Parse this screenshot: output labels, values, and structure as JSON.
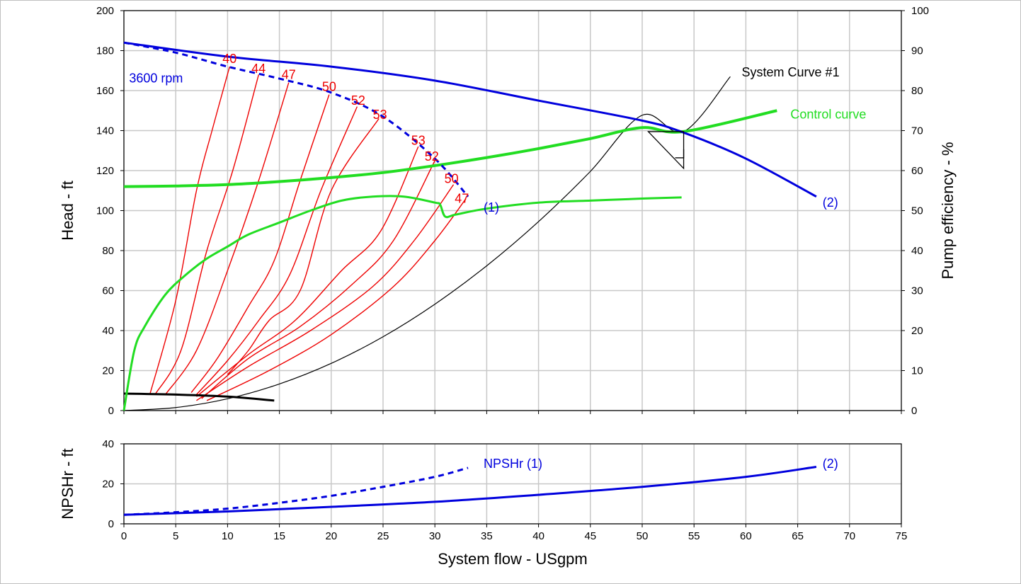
{
  "chart_data": {
    "type": "line",
    "x_axis": {
      "label": "System flow - USgpm",
      "range": [
        0,
        75
      ],
      "ticks": [
        0,
        5,
        10,
        15,
        20,
        25,
        30,
        35,
        40,
        45,
        50,
        55,
        60,
        65,
        70,
        75
      ]
    },
    "head_axis": {
      "label": "Head - ft",
      "range": [
        0,
        200
      ],
      "ticks": [
        0,
        20,
        40,
        60,
        80,
        100,
        120,
        140,
        160,
        180,
        200
      ]
    },
    "efficiency_axis": {
      "label": "Pump efficiency - %",
      "range": [
        0,
        100
      ],
      "ticks": [
        0,
        10,
        20,
        30,
        40,
        50,
        60,
        70,
        80,
        90,
        100
      ]
    },
    "npsh_axis": {
      "label": "NPSHr - ft",
      "range": [
        0,
        40
      ],
      "ticks": [
        0,
        20,
        40
      ]
    },
    "grid": true,
    "colors": {
      "pump": "#0000dd",
      "iso": "#ee0000",
      "control": "#22dd22",
      "system": "#000000"
    },
    "pump_curve_2": {
      "label": "(2)",
      "x": [
        0,
        10,
        20,
        30,
        40,
        50,
        54,
        60,
        66.8
      ],
      "y": [
        184,
        177,
        172,
        165,
        155,
        145,
        139,
        126,
        107
      ]
    },
    "pump_curve_1_3600": {
      "label": "(1)",
      "speed_label": "3600 rpm",
      "x": [
        0,
        5,
        10,
        15,
        20,
        25,
        30,
        33.2
      ],
      "y": [
        184,
        179,
        172,
        166,
        159,
        147,
        126,
        107
      ]
    },
    "system_curve": {
      "label": "System Curve #1",
      "x": [
        0,
        5,
        10,
        15,
        20,
        25,
        30,
        35,
        40,
        45,
        50,
        54,
        58.5
      ],
      "y": [
        0,
        1.5,
        5.9,
        13.3,
        23.6,
        36.9,
        53.2,
        72.4,
        94.5,
        119.6,
        147.7,
        139.5,
        167
      ]
    },
    "control_curve": {
      "label": "Control curve",
      "x": [
        0,
        5,
        10,
        15,
        20,
        25,
        30,
        35,
        40,
        45,
        50,
        54,
        63
      ],
      "y": [
        112,
        112.3,
        113,
        114.5,
        116.5,
        119,
        122.5,
        126.5,
        131,
        136,
        141.5,
        139.5,
        150
      ]
    },
    "efficiency_curve": {
      "x": [
        0,
        1,
        2,
        4,
        6,
        8,
        10,
        12,
        15,
        18,
        21,
        24,
        27,
        30,
        30.5,
        31,
        32,
        35,
        40,
        45,
        50,
        53.8
      ],
      "y": [
        0,
        15,
        21,
        29,
        34,
        38,
        41,
        44,
        47,
        50,
        52.5,
        53.5,
        53.5,
        52,
        51.5,
        48.5,
        49,
        50.5,
        52,
        52.5,
        53,
        53.3
      ]
    },
    "npsh_curve_1": {
      "label": "NPSHr (1)",
      "x": [
        0,
        5,
        10,
        15,
        20,
        25,
        30,
        33.2
      ],
      "y": [
        4.5,
        5.8,
        7.6,
        10.5,
        14,
        18.5,
        23.5,
        28
      ]
    },
    "npsh_curve_2": {
      "label": "(2)",
      "x": [
        0,
        10,
        20,
        30,
        40,
        50,
        60,
        66.8
      ],
      "y": [
        4.5,
        6.2,
        8.5,
        11,
        14.5,
        18.5,
        23.5,
        28.5
      ]
    },
    "low_speed_black": {
      "x": [
        0,
        5,
        10,
        14.5
      ],
      "y": [
        8.5,
        8,
        7,
        5
      ]
    },
    "iso_efficiency_labels": [
      "40",
      "44",
      "47",
      "50",
      "52",
      "53",
      "53",
      "52",
      "50",
      "47"
    ],
    "iso_efficiency_lines": [
      {
        "label": "40",
        "x": [
          2.5,
          5,
          7,
          8.5,
          10.2
        ],
        "y": [
          8,
          55,
          110,
          140,
          172
        ]
      },
      {
        "label": "44",
        "x": [
          3,
          5.5,
          8,
          10.5,
          13
        ],
        "y": [
          8,
          30,
          80,
          120,
          168
        ]
      },
      {
        "label": "47",
        "x": [
          4,
          7,
          10,
          13,
          15.9
        ],
        "y": [
          8,
          30,
          70,
          115,
          164
        ]
      },
      {
        "label": "50",
        "x": [
          6.5,
          9,
          12,
          14.5,
          17,
          19.8
        ],
        "y": [
          9,
          26,
          52,
          75,
          115,
          158
        ]
      },
      {
        "label": "52",
        "x": [
          7,
          10,
          13,
          16,
          19,
          22.5
        ],
        "y": [
          8,
          25,
          45,
          68,
          110,
          152
        ]
      },
      {
        "label": "53",
        "x": [
          10,
          12,
          14,
          17,
          20,
          24.6
        ],
        "y": [
          18,
          30,
          45,
          60,
          110,
          146
        ]
      },
      {
        "label": "53",
        "x": [
          7,
          12,
          16.5,
          21,
          24.8,
          28.4
        ],
        "y": [
          7,
          28,
          45,
          70,
          90,
          132
        ]
      },
      {
        "label": "52",
        "x": [
          7.5,
          12,
          17,
          22,
          26,
          30
        ],
        "y": [
          6,
          26,
          42,
          63,
          85,
          125
        ]
      },
      {
        "label": "50",
        "x": [
          7,
          12,
          18,
          24,
          28,
          31.8
        ],
        "y": [
          5,
          22,
          40,
          62,
          85,
          113
        ]
      },
      {
        "label": "47",
        "x": [
          8,
          14,
          20,
          26,
          30,
          33
        ],
        "y": [
          5,
          20,
          38,
          62,
          85,
          106
        ]
      }
    ],
    "operating_point": {
      "x": 54,
      "y": 139.5
    }
  }
}
